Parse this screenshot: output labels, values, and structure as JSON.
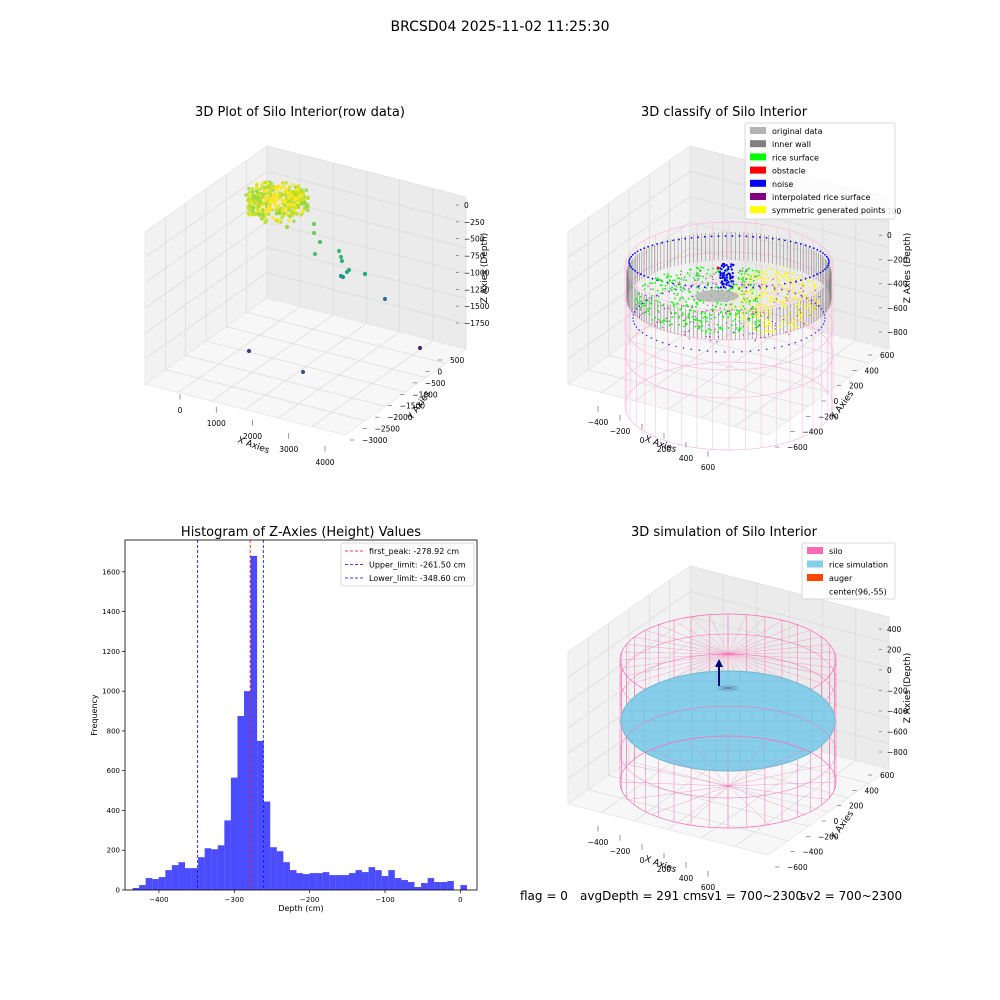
{
  "figure": {
    "suptitle": "BRCSD04 2025-11-02 11:25:30",
    "status_line": {
      "flag": "flag = 0",
      "avg": "avgDepth = 291 cm",
      "sv1": "sv1 = 700~2300",
      "sv2": "sv2 = 700~2300"
    }
  },
  "chart_data": [
    {
      "id": "raw",
      "type": "scatter",
      "title": "3D Plot of Silo Interior(row data)",
      "xlabel": "X Axies",
      "ylabel": "Y Axies",
      "zlabel": "Z Axies (Depth)",
      "x_ticks": [
        "0",
        "1000",
        "2000",
        "3000",
        "4000"
      ],
      "y_ticks": [
        "500",
        "0",
        "−500",
        "−1000",
        "−1500",
        "−2000",
        "−2500",
        "−3000"
      ],
      "z_ticks": [
        "0",
        "−250",
        "−500",
        "−750",
        "−1000",
        "−1250",
        "−1500",
        "−1750"
      ],
      "colormap": "viridis"
    },
    {
      "id": "classify",
      "type": "scatter",
      "title": "3D classify of Silo Interior",
      "xlabel": "X Axies",
      "ylabel": "Y Axies",
      "zlabel": "Z Axies (Depth)",
      "x_ticks": [
        "−400",
        "−200",
        "0",
        "200",
        "400",
        "600"
      ],
      "y_ticks": [
        "600",
        "400",
        "200",
        "0",
        "−200",
        "−400",
        "−600"
      ],
      "z_ticks": [
        "200",
        "0",
        "−200",
        "−400",
        "−600",
        "−800"
      ],
      "legend": {
        "placement": "top-right",
        "entries": [
          {
            "label": "original data",
            "color": "#b3b3b3"
          },
          {
            "label": "inner wall",
            "color": "#808080"
          },
          {
            "label": "rice surface",
            "color": "#00ff00"
          },
          {
            "label": "obstacle",
            "color": "#ff0000"
          },
          {
            "label": "noise",
            "color": "#0000ff"
          },
          {
            "label": "interpolated rice surface",
            "color": "#800080"
          },
          {
            "label": "symmetric generated points",
            "color": "#ffff00"
          }
        ]
      },
      "cylinder_color": "#ffb6d9"
    },
    {
      "id": "hist",
      "type": "bar",
      "title": "Histogram of Z-Axies (Height) Values",
      "xlabel": "Depth (cm)",
      "ylabel": "Frequency",
      "xlim": [
        -445,
        22
      ],
      "ylim": [
        0,
        1760
      ],
      "x_ticks": [
        -400,
        -300,
        -200,
        -100,
        0
      ],
      "y_ticks": [
        0,
        200,
        400,
        600,
        800,
        1000,
        1200,
        1400,
        1600
      ],
      "bin_start": -435,
      "bin_width": 8.7,
      "values": [
        10,
        25,
        60,
        55,
        65,
        100,
        125,
        140,
        110,
        110,
        165,
        210,
        205,
        225,
        350,
        565,
        875,
        1000,
        1680,
        750,
        445,
        215,
        195,
        140,
        100,
        85,
        80,
        85,
        85,
        90,
        75,
        75,
        75,
        85,
        100,
        90,
        115,
        100,
        70,
        100,
        60,
        50,
        40,
        15,
        35,
        60,
        40,
        40,
        45,
        0,
        25
      ],
      "bar_color": "#0000ff",
      "vlines": [
        {
          "value": -278.92,
          "color": "#ff0000"
        },
        {
          "value": -261.5,
          "color": "#0000ff"
        },
        {
          "value": -348.6,
          "color": "#0000ff"
        }
      ],
      "legend": {
        "placement": "top-right",
        "entries": [
          {
            "label": "first_peak: -278.92 cm",
            "color": "#ff0000"
          },
          {
            "label": "Upper_limit: -261.50 cm",
            "color": "#0000ff"
          },
          {
            "label": "Lower_limit: -348.60 cm",
            "color": "#0000ff"
          }
        ]
      }
    },
    {
      "id": "sim",
      "type": "scatter",
      "title": "3D simulation of Silo Interior",
      "xlabel": "X Axies",
      "ylabel": "Y Axies",
      "zlabel": "Z Axies (Depth)",
      "x_ticks": [
        "−400",
        "−200",
        "0",
        "200",
        "400",
        "600"
      ],
      "y_ticks": [
        "600",
        "400",
        "200",
        "0",
        "−200",
        "−400",
        "−600"
      ],
      "z_ticks": [
        "400",
        "200",
        "0",
        "−200",
        "−400",
        "−600",
        "−800"
      ],
      "legend": {
        "placement": "top-right",
        "entries": [
          {
            "label": "silo",
            "color": "#ff69b4"
          },
          {
            "label": "rice simulation",
            "color": "#87ceeb"
          },
          {
            "label": "auger",
            "color": "#ff4500"
          },
          {
            "label": "center(96,-55)",
            "color": ""
          }
        ]
      }
    }
  ]
}
